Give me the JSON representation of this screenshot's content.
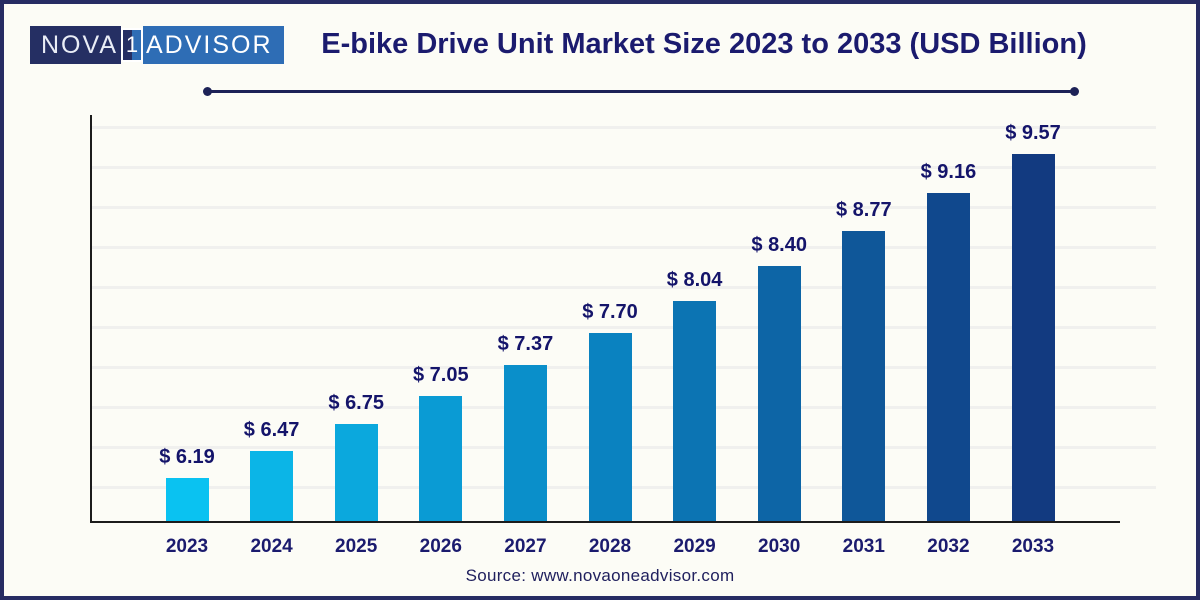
{
  "logo": {
    "part1": "NOVA",
    "part2": "1",
    "part3": "ADVISOR"
  },
  "title": "E-bike Drive Unit Market Size 2023 to 2033 (USD Billion)",
  "source": "Source: www.novaoneadvisor.com",
  "colors": {
    "background": "#fcfcf6",
    "frame_border": "#262c63",
    "title_text": "#1b1b6e",
    "axis": "#1c1c1c",
    "gridline": "#f0f0ee",
    "divider": "#1d2257",
    "logo_left_bg": "#252f63",
    "logo_right_bg": "#2e6db5",
    "logo_text": "#ffffff"
  },
  "chart_data": {
    "type": "bar",
    "title": "E-bike Drive Unit Market Size 2023 to 2033 (USD Billion)",
    "unit": "USD Billion",
    "categories": [
      "2023",
      "2024",
      "2025",
      "2026",
      "2027",
      "2028",
      "2029",
      "2030",
      "2031",
      "2032",
      "2033"
    ],
    "values": [
      6.19,
      6.47,
      6.75,
      7.05,
      7.37,
      7.7,
      8.04,
      8.4,
      8.77,
      9.16,
      9.57
    ],
    "value_labels": [
      "$ 6.19",
      "$ 6.47",
      "$ 6.75",
      "$ 7.05",
      "$ 7.37",
      "$ 7.70",
      "$ 8.04",
      "$ 8.40",
      "$ 8.77",
      "$ 9.16",
      "$ 9.57"
    ],
    "bar_colors": [
      "#0ac2f1",
      "#0bb5e7",
      "#0ba8dd",
      "#0a9bd4",
      "#0a8fca",
      "#0a82c0",
      "#0c74b3",
      "#0d65a6",
      "#0f5799",
      "#10488d",
      "#123a80"
    ],
    "ylim": [
      5.74,
      10.0
    ],
    "xlabel": "",
    "ylabel": "",
    "grid": "horizontal",
    "legend": "none",
    "yaxis_tick_labels": "none"
  }
}
